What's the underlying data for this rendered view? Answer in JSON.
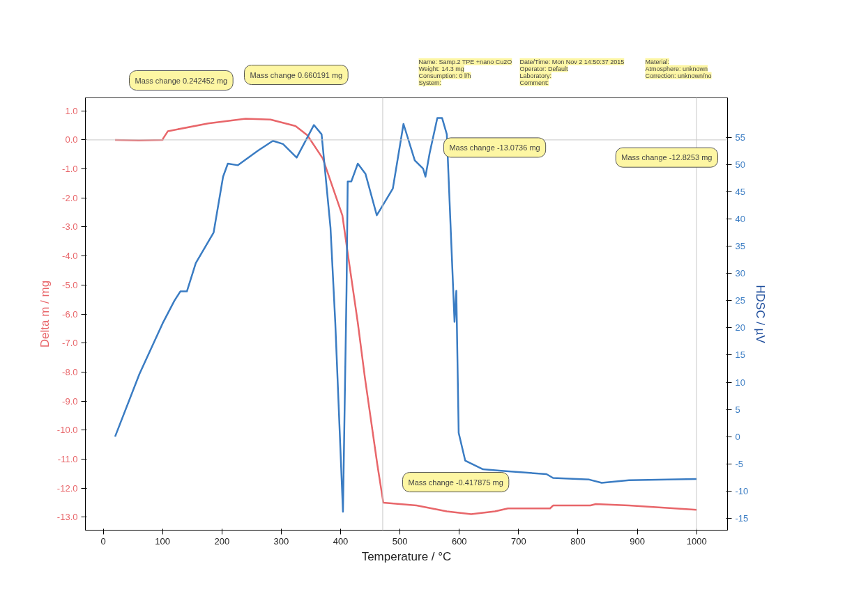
{
  "chart_data": {
    "type": "line",
    "xlabel": "Temperature / °C",
    "ylabel": "Delta m / mg",
    "y2label": "HDSC / µV",
    "xlim": [
      -30,
      1052
    ],
    "xticks": [
      0,
      100,
      200,
      300,
      400,
      500,
      600,
      700,
      800,
      900,
      1000
    ],
    "ylim": [
      -13.45,
      1.45
    ],
    "yticks": [
      {
        "value": 1,
        "label": "1.0"
      },
      {
        "value": 0,
        "label": "0.0"
      },
      {
        "value": -1,
        "label": "-1.0"
      },
      {
        "value": -2,
        "label": "-2.0"
      },
      {
        "value": -3,
        "label": "-3.0"
      },
      {
        "value": -4,
        "label": "-4.0"
      },
      {
        "value": -5,
        "label": "-5.0"
      },
      {
        "value": -6,
        "label": "-6.0"
      },
      {
        "value": -7,
        "label": "-7.0"
      },
      {
        "value": -8,
        "label": "-8.0"
      },
      {
        "value": -9,
        "label": "-9.0"
      },
      {
        "value": -10,
        "label": "-10.0"
      },
      {
        "value": -11,
        "label": "-11.0"
      },
      {
        "value": -12,
        "label": "-12.0"
      },
      {
        "value": -13,
        "label": "-13.0"
      }
    ],
    "y2lim": [
      -17.2,
      62.3
    ],
    "y2ticks": [
      -15,
      -10,
      -5,
      0,
      5,
      10,
      15,
      20,
      25,
      30,
      35,
      40,
      45,
      50,
      55
    ],
    "grid": false,
    "line_style": "solid",
    "marker": "none",
    "series": [
      {
        "color": "#e8666a",
        "axis": "y",
        "x": [
          20,
          60,
          100,
          101,
          109,
          177,
          240,
          282,
          324,
          344,
          370,
          403,
          412,
          429,
          441,
          462,
          472,
          528,
          579,
          620,
          660,
          682,
          753,
          758,
          821,
          830,
          886,
          1000
        ],
        "values": [
          0.0,
          -0.02,
          0.0,
          0.05,
          0.3,
          0.57,
          0.73,
          0.7,
          0.48,
          0.16,
          -0.64,
          -2.6,
          -3.9,
          -6.3,
          -8.2,
          -11.2,
          -12.5,
          -12.6,
          -12.8,
          -12.9,
          -12.8,
          -12.7,
          -12.7,
          -12.6,
          -12.6,
          -12.55,
          -12.6,
          -12.75
        ]
      },
      {
        "color": "#3a7cc3",
        "axis": "y2",
        "x": [
          20,
          61,
          100,
          120,
          130,
          141,
          156,
          186,
          202,
          210,
          227,
          261,
          286,
          303,
          326,
          355,
          368,
          383,
          391,
          404,
          410,
          412,
          418,
          429,
          442,
          461,
          471,
          488,
          506,
          525,
          539,
          543,
          550,
          563,
          571,
          579,
          592,
          595,
          599,
          610,
          640,
          671,
          747,
          758,
          819,
          840,
          886,
          1000
        ],
        "values": [
          0,
          11.5,
          20.8,
          25,
          26.7,
          26.7,
          31.9,
          37.5,
          47.8,
          50.2,
          49.9,
          52.6,
          54.4,
          53.8,
          51.3,
          57.3,
          55.6,
          38.4,
          21.1,
          -13.8,
          26.8,
          46.9,
          46.9,
          50.2,
          48.3,
          40.7,
          42.5,
          45.6,
          57.5,
          50.8,
          49.3,
          47.8,
          52.1,
          58.6,
          58.6,
          55.6,
          21.1,
          26.8,
          0.7,
          -4.4,
          -6.0,
          -6.3,
          -6.9,
          -7.6,
          -7.9,
          -8.5,
          -8.0,
          -7.8
        ]
      }
    ],
    "ref_lines": [
      {
        "axis": "y",
        "value": 0,
        "color": "#c8c8c8"
      },
      {
        "axis": "x",
        "value": 471,
        "color": "#c8c8c8"
      },
      {
        "axis": "x",
        "value": 1000,
        "color": "#c8c8c8"
      }
    ],
    "annotations": [
      "Mass change 0.242452 mg",
      "Mass change 0.660191 mg",
      "Mass change -13.0736 mg",
      "Mass change -12.8253 mg",
      "Mass change -0.417875 mg",
      "Name: Samp.2 TPE +nano Cu2O",
      "Date/Time: Mon Nov 2 14:50:37 2015",
      "Material:",
      "Weight: 14.3 mg",
      "Operator: Default",
      "Atmosphere: unknown",
      "Consumption: 0 l/h",
      "Laboratory:",
      "Correction: unknown/no",
      "System:",
      "Comment:"
    ]
  }
}
